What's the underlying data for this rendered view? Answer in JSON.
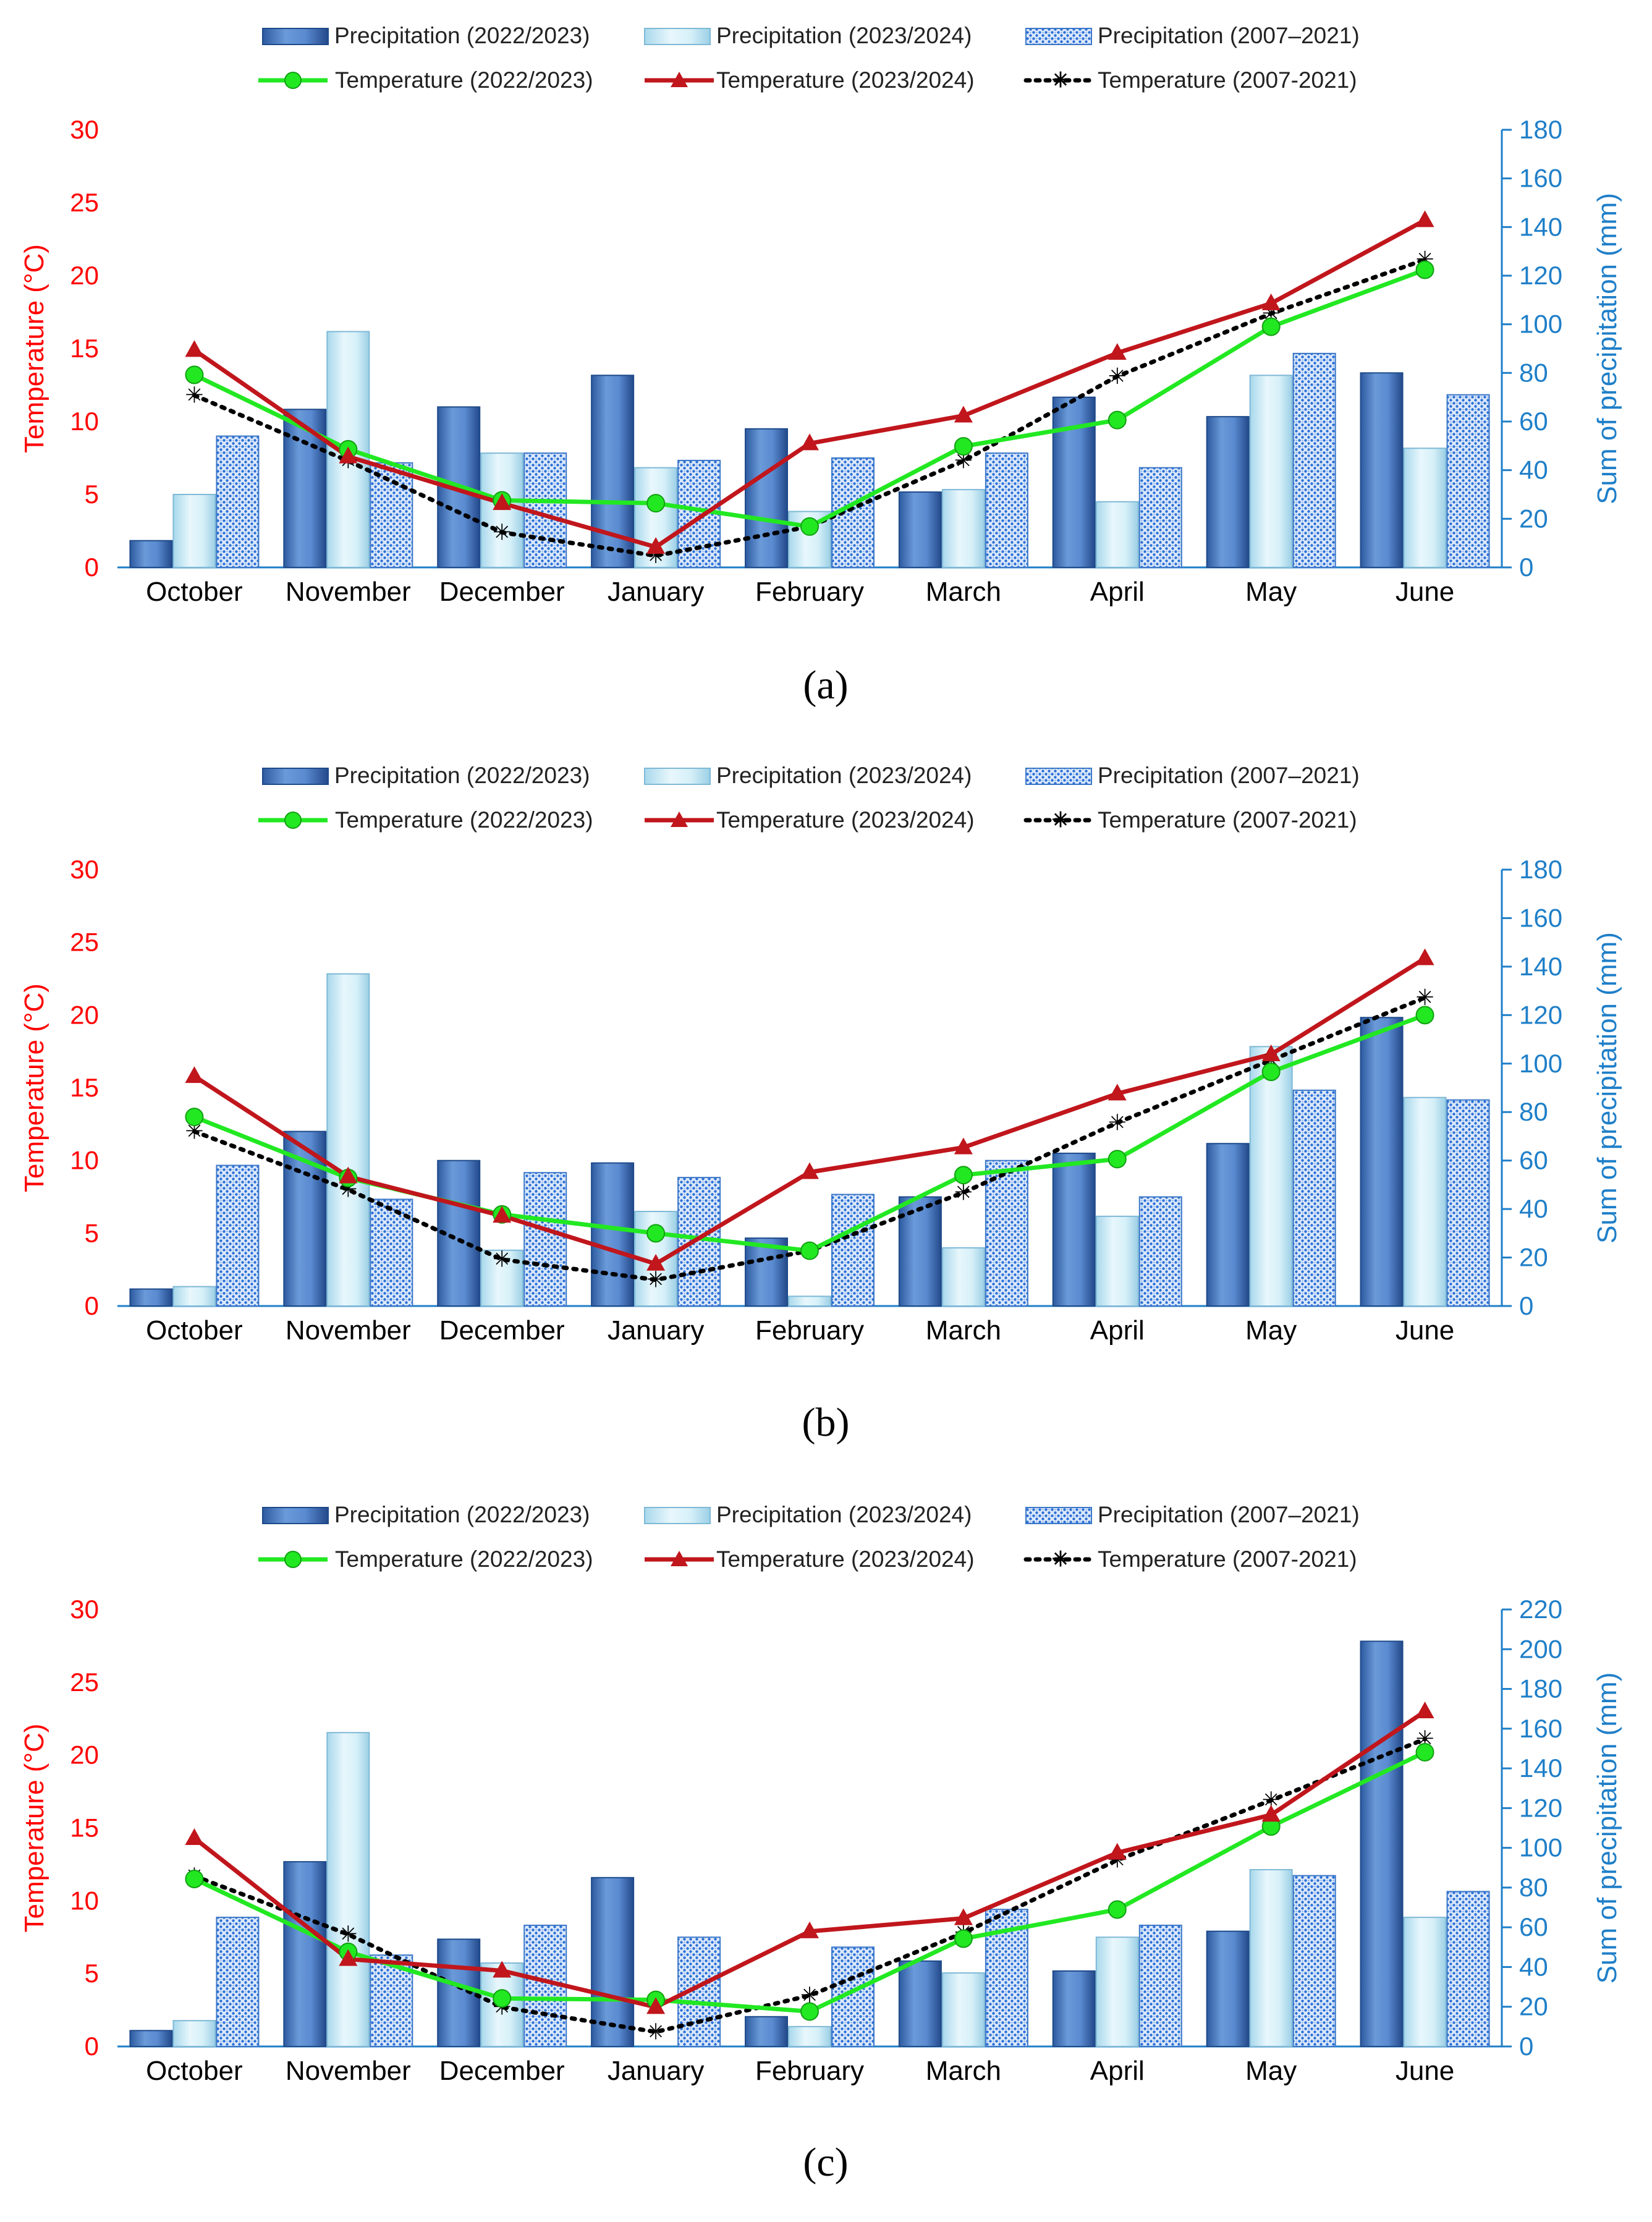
{
  "colors": {
    "precip_2223": "#4a7bc0",
    "precip_2324": "#bfe6f3",
    "precip_hist": "#2f6fd0",
    "temp_2223": "#22e822",
    "temp_2324": "#c0161c",
    "temp_hist": "#000000",
    "left_axis": "#ff0000",
    "right_axis": "#1f7fc8",
    "axis_line": "#1f7fc8"
  },
  "chart_data": [
    {
      "type": "bar",
      "panel_label": "(a)",
      "legend": {
        "p1": "Precipitation (2022/2023)",
        "p2": "Precipitation (2023/2024)",
        "p3": "Precipitation (2007–2021)",
        "t1": "Temperature (2022/2023)",
        "t2": "Temperature (2023/2024)",
        "t3": "Temperature (2007-2021)"
      },
      "categories": [
        "October",
        "November",
        "December",
        "January",
        "February",
        "March",
        "April",
        "May",
        "June"
      ],
      "ylabel_left": "Temperature (°C)",
      "ylabel_right": "Sum of precipitation (mm)",
      "ylim_left": [
        0,
        30
      ],
      "yticks_left": [
        "0",
        "5",
        "10",
        "15",
        "20",
        "25",
        "30"
      ],
      "ylim_right": [
        0,
        180
      ],
      "yticks_right": [
        "0",
        "20",
        "40",
        "60",
        "80",
        "100",
        "120",
        "140",
        "160",
        "180"
      ],
      "bar_series": [
        {
          "name": "Precipitation (2022/2023)",
          "values": [
            11,
            65,
            66,
            79,
            57,
            31,
            70,
            62,
            80
          ]
        },
        {
          "name": "Precipitation (2023/2024)",
          "values": [
            30,
            97,
            47,
            41,
            23,
            32,
            27,
            79,
            49
          ]
        },
        {
          "name": "Precipitation (2007–2021)",
          "values": [
            54,
            43,
            47,
            44,
            45,
            47,
            41,
            88,
            71
          ]
        }
      ],
      "line_series": [
        {
          "name": "Temperature (2022/2023)",
          "values": [
            13.2,
            8.1,
            4.6,
            4.4,
            2.8,
            8.3,
            10.1,
            16.5,
            20.4
          ]
        },
        {
          "name": "Temperature (2023/2024)",
          "values": [
            14.9,
            7.6,
            4.4,
            1.4,
            8.5,
            10.4,
            14.7,
            18.1,
            23.8
          ]
        },
        {
          "name": "Temperature (2007-2021)",
          "values": [
            11.8,
            7.3,
            2.4,
            0.8,
            2.8,
            7.3,
            13.1,
            17.4,
            21.1
          ]
        }
      ]
    },
    {
      "type": "bar",
      "panel_label": "(b)",
      "legend": {
        "p1": "Precipitation (2022/2023)",
        "p2": "Precipitation (2023/2024)",
        "p3": "Precipitation (2007–2021)",
        "t1": "Temperature (2022/2023)",
        "t2": "Temperature (2023/2024)",
        "t3": "Temperature (2007-2021)"
      },
      "categories": [
        "October",
        "November",
        "December",
        "January",
        "February",
        "March",
        "April",
        "May",
        "June"
      ],
      "ylabel_left": "Temperature (°C)",
      "ylabel_right": "Sum of precipitation (mm)",
      "ylim_left": [
        0,
        30
      ],
      "yticks_left": [
        "0",
        "5",
        "10",
        "15",
        "20",
        "25",
        "30"
      ],
      "ylim_right": [
        0,
        180
      ],
      "yticks_right": [
        "0",
        "20",
        "40",
        "60",
        "80",
        "100",
        "120",
        "140",
        "160",
        "180"
      ],
      "bar_series": [
        {
          "name": "Precipitation (2022/2023)",
          "values": [
            7,
            72,
            60,
            59,
            28,
            45,
            63,
            67,
            119
          ]
        },
        {
          "name": "Precipitation (2023/2024)",
          "values": [
            8,
            137,
            23,
            39,
            4,
            24,
            37,
            107,
            86
          ]
        },
        {
          "name": "Precipitation (2007–2021)",
          "values": [
            58,
            44,
            55,
            53,
            46,
            60,
            45,
            89,
            85
          ]
        }
      ],
      "line_series": [
        {
          "name": "Temperature (2022/2023)",
          "values": [
            13.0,
            8.8,
            6.3,
            5.0,
            3.8,
            9.0,
            10.1,
            16.1,
            20.0
          ]
        },
        {
          "name": "Temperature (2023/2024)",
          "values": [
            15.8,
            8.9,
            6.2,
            2.9,
            9.2,
            10.9,
            14.6,
            17.3,
            23.9
          ]
        },
        {
          "name": "Temperature (2007-2021)",
          "values": [
            12.0,
            8.0,
            3.2,
            1.8,
            3.8,
            7.8,
            12.6,
            16.9,
            21.2
          ]
        }
      ]
    },
    {
      "type": "bar",
      "panel_label": "(c)",
      "legend": {
        "p1": "Precipitation (2022/2023)",
        "p2": "Precipitation (2023/2024)",
        "p3": "Precipitation (2007–2021)",
        "t1": "Temperature (2022/2023)",
        "t2": "Temperature (2023/2024)",
        "t3": "Temperature (2007-2021)"
      },
      "categories": [
        "October",
        "November",
        "December",
        "January",
        "February",
        "March",
        "April",
        "May",
        "June"
      ],
      "ylabel_left": "Temperature (°C)",
      "ylabel_right": "Sum of precipitation (mm)",
      "ylim_left": [
        0,
        30
      ],
      "yticks_left": [
        "0",
        "5",
        "10",
        "15",
        "20",
        "25",
        "30"
      ],
      "ylim_right": [
        0,
        220
      ],
      "yticks_right": [
        "0",
        "20",
        "40",
        "60",
        "80",
        "100",
        "120",
        "140",
        "160",
        "180",
        "200",
        "220"
      ],
      "bar_series": [
        {
          "name": "Precipitation (2022/2023)",
          "values": [
            8,
            93,
            54,
            85,
            15,
            43,
            38,
            58,
            204
          ]
        },
        {
          "name": "Precipitation (2023/2024)",
          "values": [
            13,
            158,
            42,
            0,
            10,
            37,
            55,
            89,
            65
          ]
        },
        {
          "name": "Precipitation (2007–2021)",
          "values": [
            65,
            46,
            61,
            55,
            50,
            69,
            61,
            86,
            78
          ]
        }
      ],
      "line_series": [
        {
          "name": "Temperature (2022/2023)",
          "values": [
            11.5,
            6.5,
            3.3,
            3.2,
            2.4,
            7.4,
            9.4,
            15.1,
            20.2
          ]
        },
        {
          "name": "Temperature (2023/2024)",
          "values": [
            14.3,
            6.0,
            5.2,
            2.7,
            7.9,
            8.8,
            13.3,
            15.9,
            23.0
          ]
        },
        {
          "name": "Temperature (2007-2021)",
          "values": [
            11.7,
            7.7,
            2.7,
            1.0,
            3.5,
            7.8,
            12.8,
            16.9,
            21.1
          ]
        }
      ]
    }
  ]
}
